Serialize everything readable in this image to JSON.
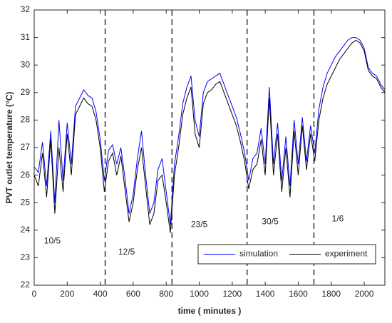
{
  "chart_data": {
    "type": "line",
    "xlabel": "time ( minutes )",
    "ylabel": "PVT outlet temperature (°C)",
    "xlim": [
      0,
      2125
    ],
    "ylim": [
      22,
      32
    ],
    "xticks": [
      0,
      200,
      400,
      600,
      800,
      1000,
      1200,
      1400,
      1600,
      1800,
      2000
    ],
    "yticks": [
      22,
      23,
      24,
      25,
      26,
      27,
      28,
      29,
      30,
      31,
      32
    ],
    "legend": "lower right",
    "dividers": [
      430,
      835,
      1290,
      1695
    ],
    "annotations": [
      {
        "text": "10/5",
        "x": 110,
        "y": 23.6
      },
      {
        "text": "12/5",
        "x": 560,
        "y": 23.2
      },
      {
        "text": "23/5",
        "x": 1000,
        "y": 24.2
      },
      {
        "text": "30/5",
        "x": 1430,
        "y": 24.3
      },
      {
        "text": "1/6",
        "x": 1840,
        "y": 24.4
      }
    ],
    "x": [
      0,
      25,
      50,
      75,
      100,
      125,
      150,
      175,
      200,
      225,
      250,
      275,
      300,
      325,
      350,
      375,
      400,
      425,
      450,
      475,
      500,
      525,
      550,
      575,
      600,
      625,
      650,
      675,
      700,
      725,
      750,
      775,
      800,
      825,
      850,
      875,
      900,
      925,
      950,
      975,
      1000,
      1025,
      1050,
      1075,
      1100,
      1125,
      1150,
      1175,
      1200,
      1225,
      1250,
      1275,
      1300,
      1325,
      1350,
      1375,
      1400,
      1425,
      1450,
      1475,
      1500,
      1525,
      1550,
      1575,
      1600,
      1625,
      1650,
      1675,
      1700,
      1725,
      1750,
      1775,
      1800,
      1825,
      1850,
      1875,
      1900,
      1925,
      1950,
      1975,
      2000,
      2025,
      2050,
      2075,
      2100,
      2125
    ],
    "series": [
      {
        "name": "simulation",
        "color": "#0000ff",
        "values": [
          26.3,
          26.1,
          27.2,
          25.6,
          27.6,
          25.0,
          28.0,
          25.8,
          27.9,
          26.4,
          28.5,
          28.8,
          29.1,
          28.9,
          28.8,
          28.3,
          27.3,
          25.8,
          26.9,
          27.1,
          26.4,
          27.0,
          25.9,
          24.6,
          25.3,
          26.6,
          27.6,
          26.0,
          24.6,
          25.0,
          26.2,
          26.6,
          25.4,
          24.2,
          26.4,
          27.4,
          28.6,
          29.2,
          29.6,
          28.0,
          27.4,
          29.0,
          29.4,
          29.5,
          29.6,
          29.7,
          29.3,
          28.9,
          28.5,
          28.1,
          27.5,
          26.8,
          25.8,
          26.6,
          26.8,
          27.7,
          26.4,
          29.2,
          26.4,
          27.9,
          25.8,
          27.4,
          25.6,
          28.0,
          26.4,
          28.1,
          26.5,
          27.8,
          26.8,
          28.4,
          29.2,
          29.7,
          30.0,
          30.3,
          30.5,
          30.7,
          30.9,
          31.0,
          31.0,
          30.9,
          30.6,
          29.9,
          29.7,
          29.6,
          29.3,
          29.1
        ]
      },
      {
        "name": "experiment",
        "color": "#000000",
        "values": [
          26.0,
          25.6,
          26.8,
          25.2,
          27.3,
          24.6,
          27.0,
          25.4,
          27.5,
          26.0,
          28.2,
          28.5,
          28.8,
          28.6,
          28.5,
          28.0,
          27.0,
          25.4,
          26.5,
          26.8,
          26.0,
          26.7,
          25.5,
          24.3,
          25.0,
          26.2,
          27.0,
          25.6,
          24.2,
          24.6,
          25.8,
          26.0,
          25.0,
          23.9,
          26.0,
          27.0,
          28.2,
          28.8,
          29.2,
          27.5,
          27.0,
          28.6,
          29.0,
          29.1,
          29.3,
          29.4,
          29.0,
          28.6,
          28.2,
          27.8,
          27.2,
          26.5,
          25.5,
          26.2,
          26.4,
          27.3,
          26.0,
          28.8,
          26.0,
          27.5,
          25.4,
          27.0,
          25.2,
          27.6,
          26.0,
          27.8,
          26.2,
          27.5,
          26.5,
          28.0,
          28.8,
          29.3,
          29.6,
          29.9,
          30.2,
          30.4,
          30.6,
          30.8,
          30.9,
          30.8,
          30.5,
          29.8,
          29.6,
          29.5,
          29.2,
          29.0
        ]
      }
    ]
  }
}
